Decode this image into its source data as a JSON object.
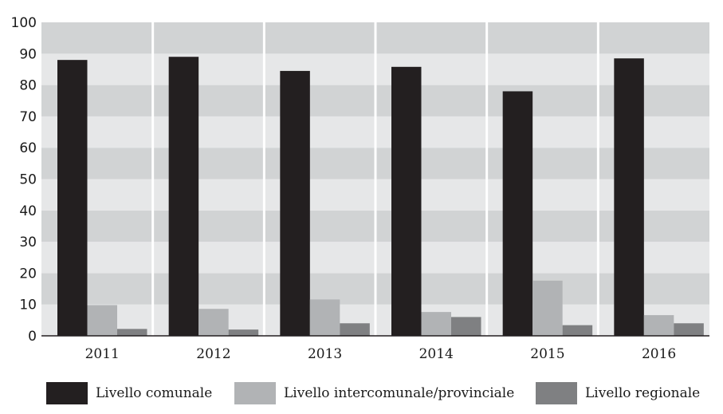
{
  "chart_data": {
    "type": "bar",
    "categories": [
      "2011",
      "2012",
      "2013",
      "2014",
      "2015",
      "2016"
    ],
    "series": [
      {
        "name": "Livello comunale",
        "color": "#231f20",
        "values": [
          88,
          89,
          84.5,
          85.8,
          78,
          88.5
        ]
      },
      {
        "name": "Livello intercomunale/provinciale",
        "color": "#b1b3b5",
        "values": [
          9.8,
          8.6,
          11.6,
          7.6,
          17.6,
          6.6
        ]
      },
      {
        "name": "Livello regionale",
        "color": "#7f8082",
        "values": [
          2.2,
          2.0,
          4.0,
          6.0,
          3.4,
          4.0
        ]
      }
    ],
    "title": "",
    "xlabel": "",
    "ylabel": "",
    "ylim": [
      0,
      100
    ],
    "yticks": [
      "0",
      "10",
      "20",
      "30",
      "40",
      "50",
      "60",
      "70",
      "80",
      "90",
      "100"
    ],
    "grid": "alternating horizontal bands",
    "band_colors": [
      "#e6e7e8",
      "#d1d3d4"
    ],
    "legend_position": "bottom"
  }
}
